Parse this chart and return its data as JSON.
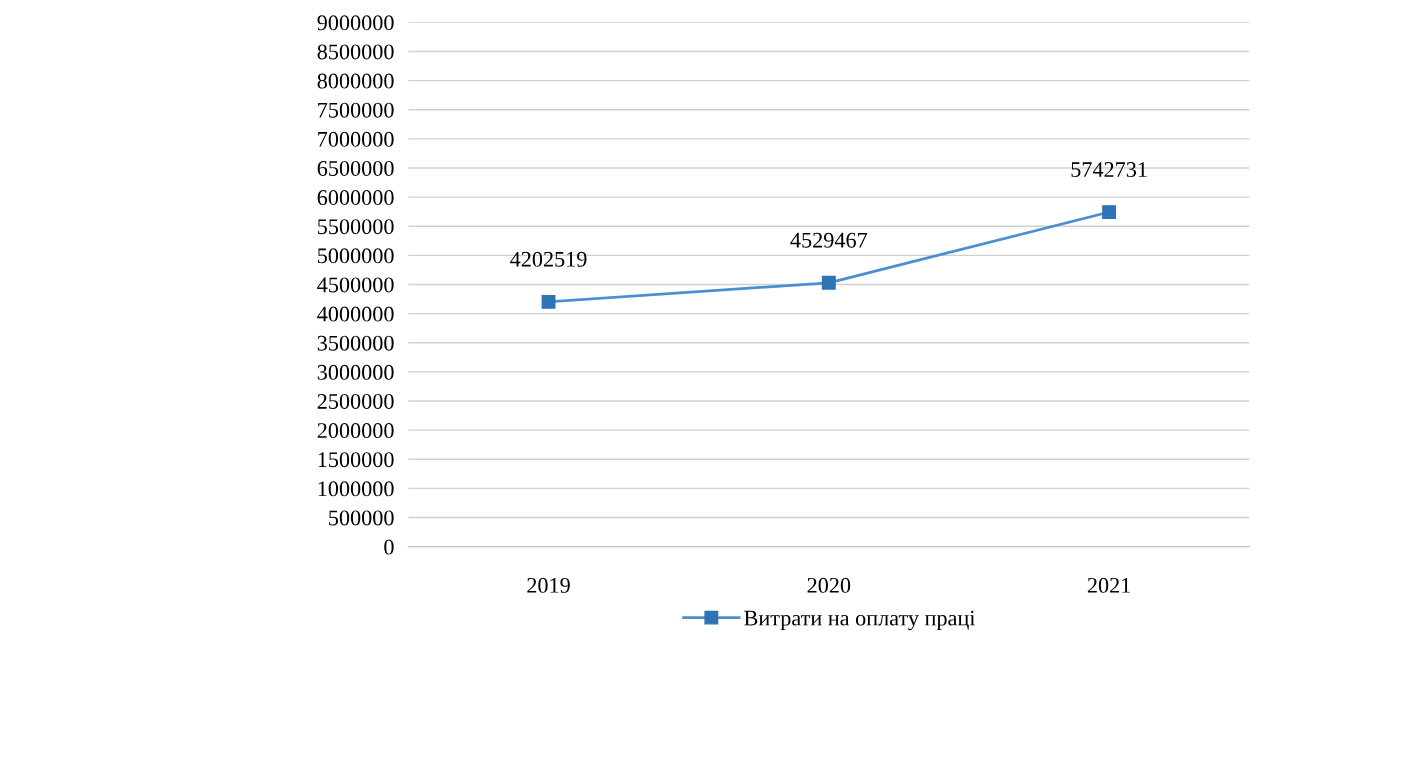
{
  "chart_data": {
    "type": "line",
    "categories": [
      "2019",
      "2020",
      "2021"
    ],
    "series": [
      {
        "name": "Витрати на оплату праці",
        "color": "#4a8fd0",
        "values": [
          4202519,
          4529467,
          5742731
        ]
      }
    ],
    "ylim": [
      0,
      9000000
    ],
    "yticks": [
      0,
      500000,
      1000000,
      1500000,
      2000000,
      2500000,
      3000000,
      3500000,
      4000000,
      4500000,
      5000000,
      5500000,
      6000000,
      6500000,
      7000000,
      7500000,
      8000000,
      8500000,
      9000000
    ],
    "grid": "y",
    "legend": "bottom",
    "marker": "square",
    "line_style": "solid",
    "data_labels": true
  }
}
